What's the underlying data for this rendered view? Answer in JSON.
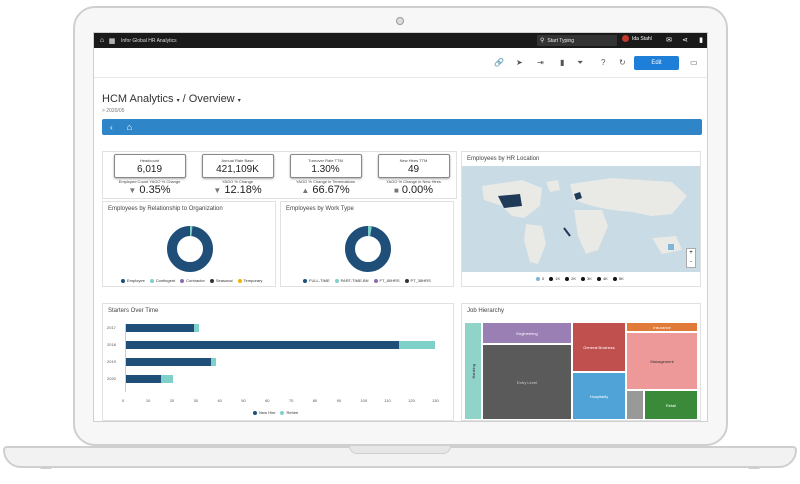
{
  "topbar": {
    "app_title": "Infor Global HR Analytics",
    "search_placeholder": "Start Typing",
    "user_name": "Ida Stahl"
  },
  "toolbar": {
    "edit_label": "Edit"
  },
  "header": {
    "breadcrumb_1": "HCM Analytics",
    "breadcrumb_2": "/ Overview",
    "period": "> 2020/05"
  },
  "kpis": [
    {
      "label": "Headcount",
      "value": "6,019",
      "sub": "Employed Count YAGO % Change",
      "change": "0.35%",
      "dir": "down"
    },
    {
      "label": "Annual Rate Base",
      "value": "421,109K",
      "sub": "YAGO % Change",
      "change": "12.18%",
      "dir": "down"
    },
    {
      "label": "Turnover Rate TTM",
      "value": "1.30%",
      "sub": "YAGO % Change in Terminations",
      "change": "66.67%",
      "dir": "up"
    },
    {
      "label": "New Hires TTM",
      "value": "49",
      "sub": "YAGO % Change in New Hires",
      "change": "0.00%",
      "dir": "flat"
    }
  ],
  "panels": {
    "relationship": {
      "title": "Employees by Relationship to Organization",
      "legend": [
        "Employee",
        "Contingent",
        "Contractor",
        "Seasonal",
        "Temporary"
      ]
    },
    "work_type": {
      "title": "Employees by Work Type",
      "legend": [
        "FULL-TIME",
        "PART-TIME-BN",
        "FT_80HRS",
        "PT_38HRS"
      ]
    },
    "location": {
      "title": "Employees by HR Location",
      "legend": [
        "0",
        "1K",
        "2K",
        "3K",
        "4K",
        "5K"
      ],
      "zoom_in": "+",
      "zoom_out": "-"
    },
    "starters": {
      "title": "Starters Over Time"
    },
    "job_hierarchy": {
      "title": "Job Hierarchy"
    }
  },
  "chart_data": {
    "type": "bar",
    "orientation": "horizontal",
    "stacked": true,
    "categories": [
      "2017",
      "2018",
      "2019",
      "2020"
    ],
    "series": [
      {
        "name": "New Hire",
        "values": [
          29,
          115,
          36,
          15
        ]
      },
      {
        "name": "Rehire",
        "values": [
          2,
          15,
          2,
          5
        ]
      }
    ],
    "xticks": [
      "0",
      "10",
      "20",
      "30",
      "40",
      "50",
      "60",
      "70",
      "80",
      "90",
      "100",
      "110",
      "120",
      "130"
    ],
    "xlim": [
      0,
      130
    ],
    "legend_position": "bottom"
  },
  "treemap": [
    {
      "label": "Banking",
      "color": "#8fd3c9"
    },
    {
      "label": "Engineering",
      "color": "#9a7fb5"
    },
    {
      "label": "Entry Level",
      "color": "#5a5a5a"
    },
    {
      "label": "General Business",
      "color": "#c0504d"
    },
    {
      "label": "Hospitality",
      "color": "#4fa3d6"
    },
    {
      "label": "Insurance",
      "color": "#e07b39"
    },
    {
      "label": "Management",
      "color": "#ee9999"
    },
    {
      "label": "Retail",
      "color": "#3a8a3a"
    }
  ],
  "colors": {
    "accent": "#1e7fd8",
    "navy": "#1f4e79",
    "teal": "#7fd0c8"
  }
}
